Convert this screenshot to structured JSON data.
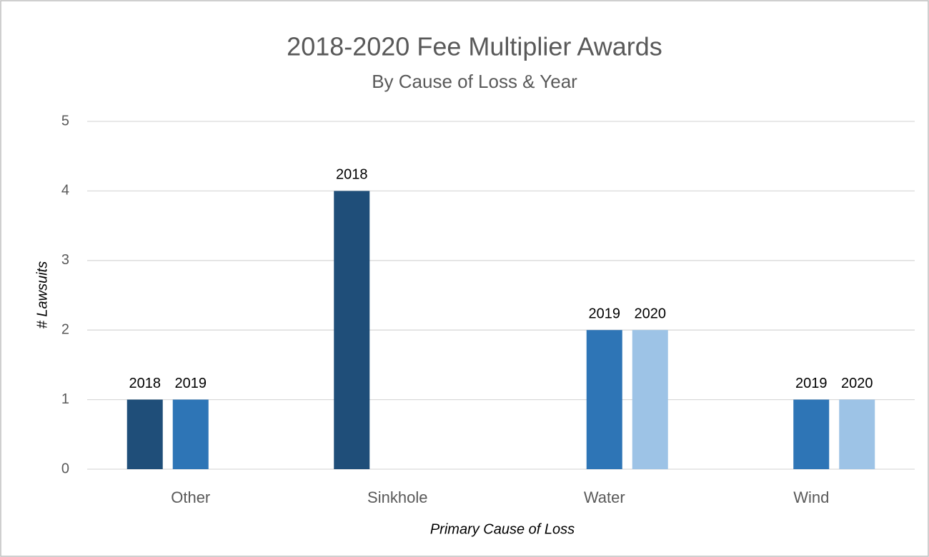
{
  "chart_data": {
    "type": "bar",
    "title": "2018-2020 Fee Multiplier Awards",
    "subtitle": "By Cause of Loss & Year",
    "y_label": "# Lawsuits",
    "x_label": "Primary Cause of Loss",
    "categories": [
      "Other",
      "Sinkhole",
      "Water",
      "Wind"
    ],
    "series": [
      {
        "name": "2018",
        "color": "#1f4e79",
        "values": [
          1,
          4,
          null,
          null
        ]
      },
      {
        "name": "2019",
        "color": "#2e75b6",
        "values": [
          1,
          null,
          2,
          1
        ]
      },
      {
        "name": "2020",
        "color": "#9dc3e6",
        "values": [
          null,
          null,
          2,
          1
        ]
      }
    ],
    "ylim": [
      0,
      5
    ],
    "yticks": [
      0,
      1,
      2,
      3,
      4,
      5
    ],
    "grid": true
  }
}
